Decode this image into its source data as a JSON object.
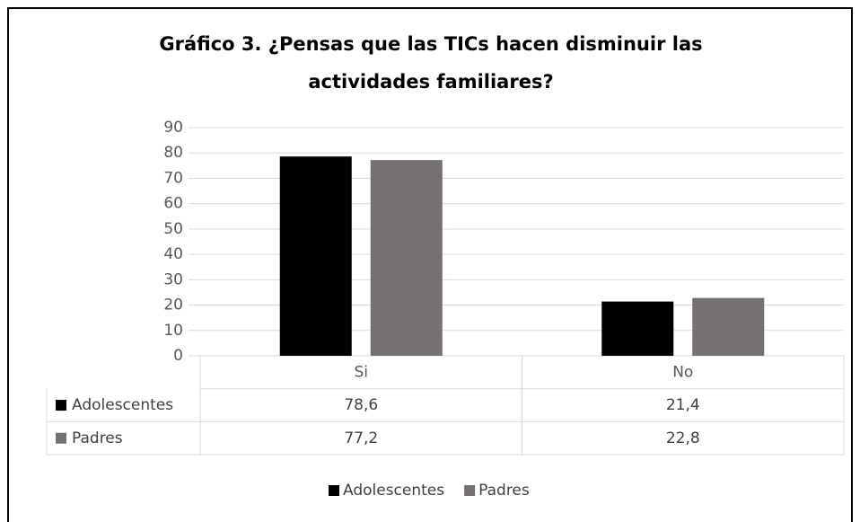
{
  "chart_data": {
    "type": "bar",
    "title": [
      "Gráfico 3. ¿Pensas que las TICs hacen disminuir las",
      "actividades familiares?"
    ],
    "categories": [
      "Si",
      "No"
    ],
    "series": [
      {
        "name": "Adolescentes",
        "color": "#000000",
        "values": [
          78.6,
          21.4
        ],
        "value_labels": [
          "78,6",
          "21,4"
        ]
      },
      {
        "name": "Padres",
        "color": "#767171",
        "values": [
          77.2,
          22.8
        ],
        "value_labels": [
          "77,2",
          "22,8"
        ]
      }
    ],
    "ylim": [
      0,
      90
    ],
    "yticks": [
      0,
      10,
      20,
      30,
      40,
      50,
      60,
      70,
      80,
      90
    ],
    "grid": true,
    "legend": "bottom"
  }
}
